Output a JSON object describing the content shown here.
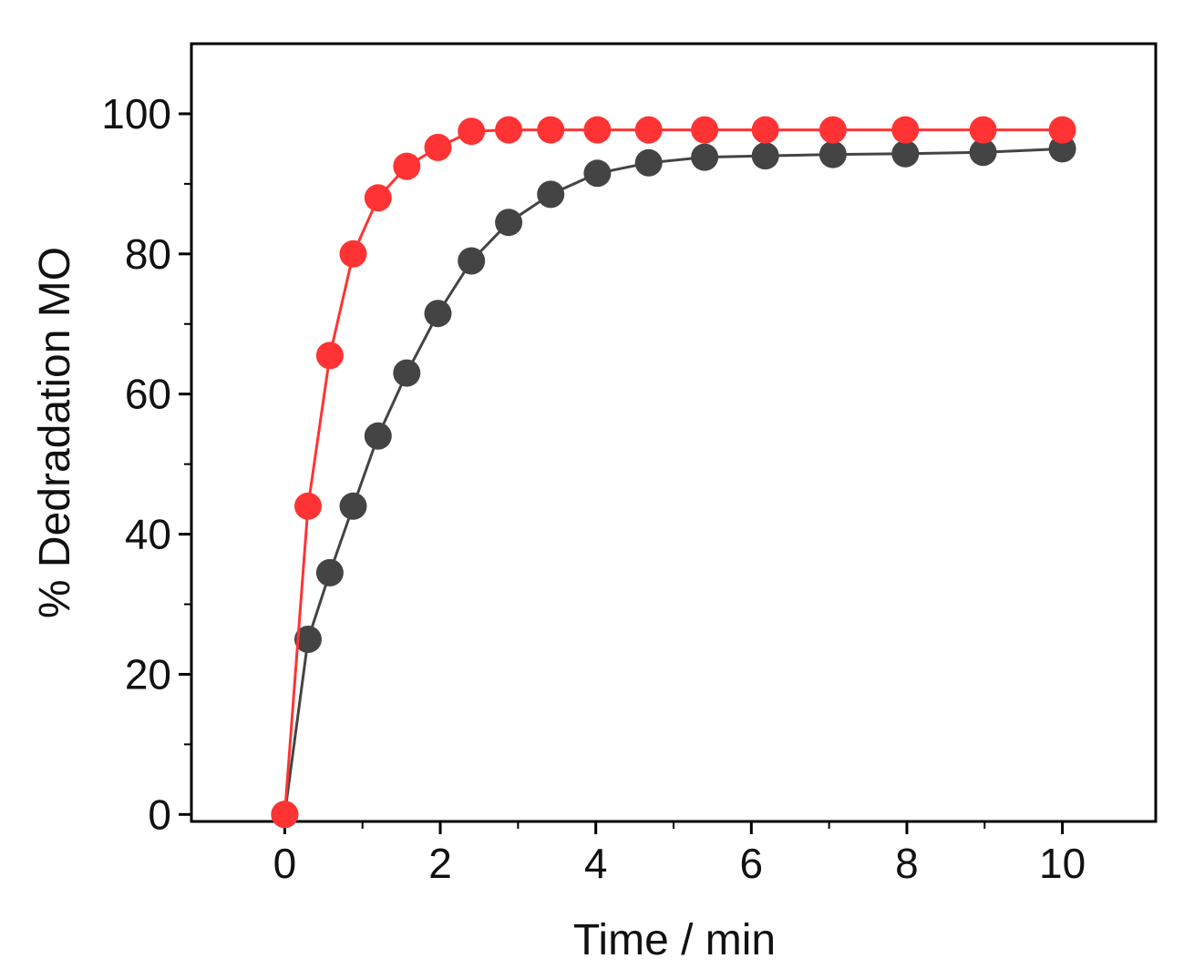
{
  "chart_data": {
    "type": "line",
    "title": "",
    "xlabel": "Time / min",
    "ylabel": "% Dedradation MO",
    "xlim": [
      -1.2,
      11.2
    ],
    "ylim": [
      -1,
      110
    ],
    "xticks": [
      0,
      2,
      4,
      6,
      8,
      10
    ],
    "yticks": [
      0,
      20,
      40,
      60,
      80,
      100
    ],
    "x_minor_ticks": [
      1,
      3,
      5,
      7,
      9
    ],
    "y_minor_ticks": [
      10,
      30,
      50,
      70,
      90
    ],
    "grid": false,
    "legend": "none",
    "series": [
      {
        "color": "#444444",
        "marker": "circle",
        "x": [
          0,
          0.3,
          0.58,
          0.88,
          1.2,
          1.57,
          1.97,
          2.4,
          2.88,
          3.42,
          4.02,
          4.68,
          5.4,
          6.18,
          7.05,
          7.98,
          8.98,
          10.0
        ],
        "y": [
          0,
          25,
          34.5,
          44,
          54,
          63,
          71.5,
          79,
          84.5,
          88.5,
          91.5,
          93,
          93.8,
          94,
          94.2,
          94.3,
          94.5,
          95
        ]
      },
      {
        "color": "#ff3333",
        "marker": "circle",
        "x": [
          0,
          0.3,
          0.58,
          0.88,
          1.2,
          1.57,
          1.97,
          2.4,
          2.88,
          3.42,
          4.02,
          4.68,
          5.4,
          6.18,
          7.05,
          7.98,
          8.98,
          10.0
        ],
        "y": [
          0,
          44,
          65.5,
          80,
          88,
          92.5,
          95.2,
          97.5,
          97.7,
          97.7,
          97.7,
          97.7,
          97.7,
          97.7,
          97.7,
          97.7,
          97.7,
          97.7
        ]
      }
    ]
  }
}
